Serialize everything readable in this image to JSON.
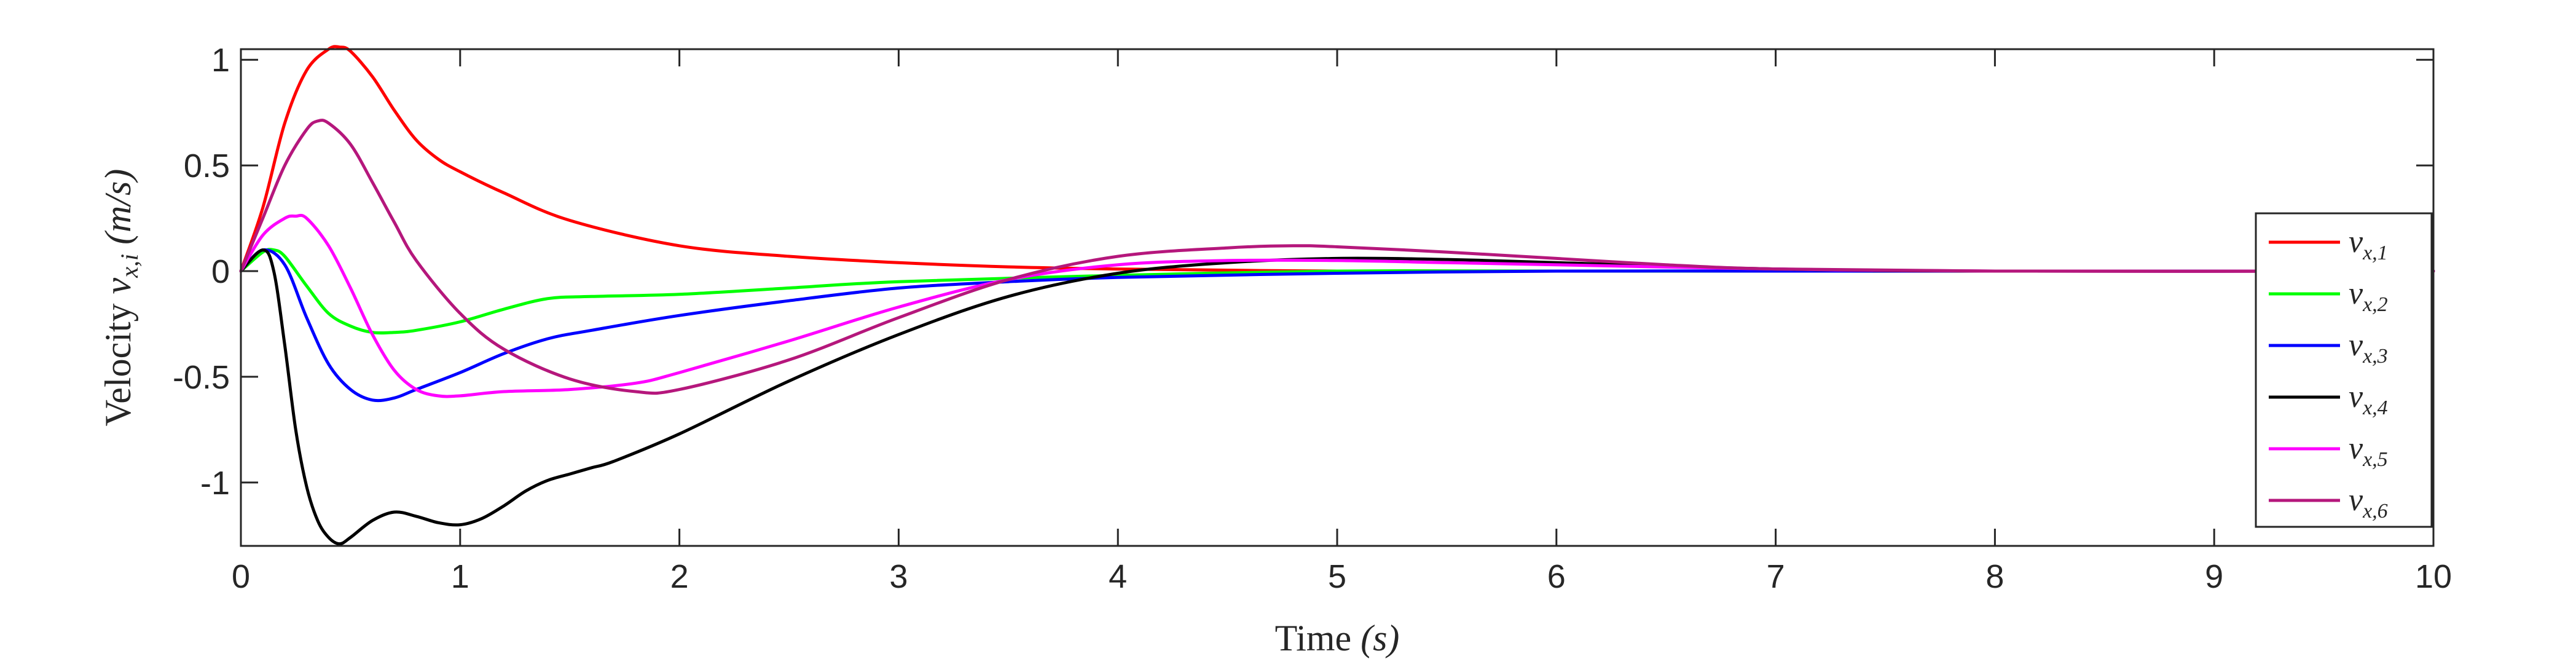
{
  "chart_data": {
    "type": "line",
    "xlabel_prefix": "Time ",
    "xlabel_math": "(s)",
    "ylabel_prefix": "Velocity ",
    "ylabel_math": "v",
    "ylabel_sub": "x,i",
    "ylabel_suffix": " (m/s)",
    "xlim": [
      0,
      10
    ],
    "ylim": [
      -1.3,
      1.05
    ],
    "xticks": [
      0,
      1,
      2,
      3,
      4,
      5,
      6,
      7,
      8,
      9,
      10
    ],
    "yticks": [
      -1,
      -0.5,
      0,
      0.5,
      1
    ],
    "ytick_labels": [
      "-1",
      "-0.5",
      "0",
      "0.5",
      "1"
    ],
    "xtick_labels": [
      "0",
      "1",
      "2",
      "3",
      "4",
      "5",
      "6",
      "7",
      "8",
      "9",
      "10"
    ],
    "grid": false,
    "legend_position": "right",
    "series": [
      {
        "name": "v",
        "sub": "x,1",
        "color": "#ff0000",
        "x": [
          0,
          0.1,
          0.2,
          0.3,
          0.4,
          0.45,
          0.5,
          0.6,
          0.7,
          0.8,
          0.9,
          1.0,
          1.2,
          1.5,
          2.0,
          2.5,
          3.0,
          3.5,
          4.0,
          5.0,
          6.0,
          8.0,
          10.0
        ],
        "y": [
          0,
          0.3,
          0.7,
          0.95,
          1.05,
          1.06,
          1.04,
          0.92,
          0.76,
          0.62,
          0.53,
          0.47,
          0.37,
          0.24,
          0.12,
          0.07,
          0.04,
          0.02,
          0.01,
          0.0,
          0.0,
          0.0,
          0.0
        ]
      },
      {
        "name": "v",
        "sub": "x,2",
        "color": "#00ff00",
        "x": [
          0,
          0.1,
          0.15,
          0.2,
          0.3,
          0.4,
          0.5,
          0.6,
          0.7,
          0.8,
          1.0,
          1.2,
          1.4,
          1.6,
          2.0,
          2.5,
          3.0,
          4.0,
          5.0,
          6.0,
          8.0,
          10.0
        ],
        "y": [
          0,
          0.09,
          0.1,
          0.07,
          -0.07,
          -0.2,
          -0.26,
          -0.29,
          -0.29,
          -0.28,
          -0.24,
          -0.18,
          -0.13,
          -0.12,
          -0.11,
          -0.08,
          -0.05,
          -0.02,
          0.0,
          0.0,
          0.0,
          0.0
        ]
      },
      {
        "name": "v",
        "sub": "x,3",
        "color": "#0000ff",
        "x": [
          0,
          0.1,
          0.2,
          0.3,
          0.4,
          0.5,
          0.6,
          0.7,
          0.8,
          1.0,
          1.2,
          1.4,
          1.6,
          2.0,
          2.5,
          3.0,
          3.5,
          4.0,
          5.0,
          6.0,
          7.0,
          8.0,
          10.0
        ],
        "y": [
          0,
          0.1,
          0.03,
          -0.22,
          -0.44,
          -0.56,
          -0.61,
          -0.6,
          -0.56,
          -0.48,
          -0.39,
          -0.32,
          -0.28,
          -0.21,
          -0.14,
          -0.08,
          -0.05,
          -0.03,
          -0.01,
          0.0,
          0.0,
          0.0,
          0.0
        ]
      },
      {
        "name": "v",
        "sub": "x,4",
        "color": "#000000",
        "x": [
          0,
          0.1,
          0.15,
          0.2,
          0.25,
          0.3,
          0.35,
          0.4,
          0.45,
          0.5,
          0.6,
          0.7,
          0.8,
          0.9,
          1.0,
          1.1,
          1.2,
          1.3,
          1.4,
          1.5,
          1.6,
          1.7,
          2.0,
          2.5,
          3.0,
          3.5,
          4.0,
          4.5,
          5.0,
          5.5,
          6.0,
          7.0,
          8.0,
          10.0
        ],
        "y": [
          0,
          0.1,
          0.0,
          -0.35,
          -0.75,
          -1.02,
          -1.18,
          -1.26,
          -1.29,
          -1.26,
          -1.18,
          -1.14,
          -1.16,
          -1.19,
          -1.2,
          -1.17,
          -1.11,
          -1.04,
          -0.99,
          -0.96,
          -0.93,
          -0.9,
          -0.77,
          -0.52,
          -0.3,
          -0.12,
          -0.01,
          0.04,
          0.06,
          0.055,
          0.04,
          0.01,
          0.0,
          0.0
        ]
      },
      {
        "name": "v",
        "sub": "x,5",
        "color": "#ff00ff",
        "x": [
          0,
          0.1,
          0.2,
          0.25,
          0.3,
          0.4,
          0.5,
          0.6,
          0.7,
          0.8,
          0.9,
          1.0,
          1.2,
          1.5,
          1.8,
          2.0,
          2.5,
          3.0,
          3.5,
          4.0,
          4.5,
          5.0,
          5.5,
          6.0,
          7.0,
          8.0,
          10.0
        ],
        "y": [
          0,
          0.17,
          0.25,
          0.26,
          0.25,
          0.12,
          -0.08,
          -0.3,
          -0.47,
          -0.56,
          -0.59,
          -0.59,
          -0.57,
          -0.56,
          -0.53,
          -0.48,
          -0.33,
          -0.17,
          -0.04,
          0.03,
          0.05,
          0.05,
          0.04,
          0.03,
          0.01,
          0.0,
          0.0
        ]
      },
      {
        "name": "v",
        "sub": "x,6",
        "color": "#b5177c",
        "x": [
          0,
          0.1,
          0.2,
          0.3,
          0.35,
          0.4,
          0.5,
          0.6,
          0.7,
          0.8,
          1.0,
          1.2,
          1.5,
          1.8,
          2.0,
          2.5,
          3.0,
          3.5,
          4.0,
          4.5,
          4.8,
          5.0,
          5.5,
          6.0,
          6.5,
          7.0,
          8.0,
          10.0
        ],
        "y": [
          0,
          0.25,
          0.5,
          0.67,
          0.71,
          0.7,
          0.6,
          0.42,
          0.23,
          0.05,
          -0.2,
          -0.37,
          -0.51,
          -0.57,
          -0.56,
          -0.42,
          -0.22,
          -0.04,
          0.07,
          0.11,
          0.12,
          0.115,
          0.09,
          0.06,
          0.03,
          0.01,
          0.0,
          0.0
        ]
      }
    ]
  }
}
